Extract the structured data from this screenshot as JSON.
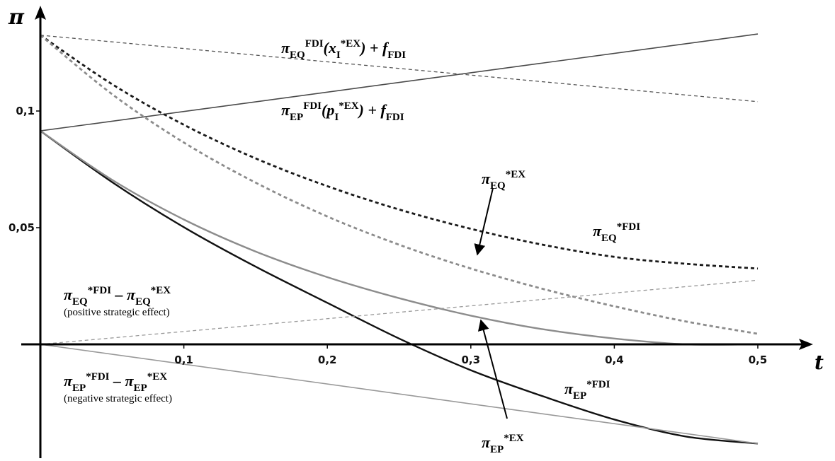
{
  "chart_data": {
    "type": "line",
    "xlabel": "t",
    "ylabel": "π",
    "xlim": [
      0,
      0.5
    ],
    "ylim": [
      -0.05,
      0.14
    ],
    "grid": false,
    "xticks": [
      {
        "value": 0.1,
        "label": "0,1"
      },
      {
        "value": 0.2,
        "label": "0,2"
      },
      {
        "value": 0.3,
        "label": "0,3"
      },
      {
        "value": 0.4,
        "label": "0,4"
      },
      {
        "value": 0.5,
        "label": "0,5"
      }
    ],
    "yticks": [
      {
        "value": 0.1,
        "label": "0,1"
      },
      {
        "value": 0.05,
        "label": "0,05"
      }
    ],
    "series": [
      {
        "id": "eq_fdi_x",
        "style": "dashed-thin",
        "color": "#555555",
        "x": [
          0,
          0.5
        ],
        "y": [
          0.1325,
          0.104
        ]
      },
      {
        "id": "ep_fdi_p",
        "style": "solid-thin",
        "color": "#4a4a4a",
        "x": [
          0,
          0.5
        ],
        "y": [
          0.0915,
          0.133
        ]
      },
      {
        "id": "eq_star_fdi",
        "style": "dashed-bold",
        "color": "#1a1a1a",
        "x": [
          0,
          0.05,
          0.1,
          0.15,
          0.2,
          0.25,
          0.3,
          0.35,
          0.4,
          0.45,
          0.5
        ],
        "y": [
          0.1325,
          0.1115,
          0.0941,
          0.0797,
          0.0678,
          0.0578,
          0.0495,
          0.0427,
          0.0375,
          0.0345,
          0.0325
        ]
      },
      {
        "id": "eq_star_ex",
        "style": "dashed-bold",
        "color": "#8c8c8c",
        "x": [
          0,
          0.05,
          0.1,
          0.15,
          0.2,
          0.25,
          0.3,
          0.35,
          0.4,
          0.45,
          0.5
        ],
        "y": [
          0.1325,
          0.1072,
          0.0865,
          0.0693,
          0.0548,
          0.0427,
          0.0325,
          0.0238,
          0.0163,
          0.0098,
          0.0045
        ]
      },
      {
        "id": "ep_star_fdi",
        "style": "solid-bold",
        "color": "#111111",
        "x": [
          0,
          0.05,
          0.1,
          0.15,
          0.2,
          0.25,
          0.3,
          0.35,
          0.4,
          0.45,
          0.5
        ],
        "y": [
          0.0915,
          0.0695,
          0.0502,
          0.0333,
          0.0178,
          0.0025,
          -0.0111,
          -0.0222,
          -0.0322,
          -0.0395,
          -0.0425
        ]
      },
      {
        "id": "ep_star_ex",
        "style": "solid-bold",
        "color": "#8c8c8c",
        "x": [
          0,
          0.05,
          0.1,
          0.15,
          0.2,
          0.25,
          0.3,
          0.35,
          0.4,
          0.45,
          0.5
        ],
        "y": [
          0.0915,
          0.0705,
          0.0535,
          0.0398,
          0.0288,
          0.0198,
          0.0123,
          0.0065,
          0.0025,
          0.0,
          0.0
        ]
      },
      {
        "id": "eq_diff",
        "style": "dashed-thin",
        "color": "#999999",
        "x": [
          0,
          0.5
        ],
        "y": [
          0,
          0.0275
        ]
      },
      {
        "id": "ep_diff",
        "style": "solid-thin",
        "color": "#999999",
        "x": [
          0,
          0.5
        ],
        "y": [
          0,
          -0.0425
        ]
      }
    ],
    "annotations": {
      "eq_fdi_x": {
        "pi": "π",
        "sub": "EQ",
        "sup": "FDI",
        "rest": "(",
        "var": "x",
        "varsub": "I",
        "varsup": "*EX",
        "tail": ") + ",
        "f": "f",
        "fsub": "FDI"
      },
      "ep_fdi_p": {
        "pi": "π",
        "sub": "EP",
        "sup": "FDI",
        "rest": "(",
        "var": "p",
        "varsub": "I",
        "varsup": "*EX",
        "tail": ") + ",
        "f": "f",
        "fsub": "FDI"
      },
      "eq_star_ex": {
        "pi": "π",
        "sub": "EQ",
        "sup": "*EX"
      },
      "eq_star_fdi": {
        "pi": "π",
        "sub": "EQ",
        "sup": "*FDI"
      },
      "eq_diff": {
        "pi1": "π",
        "sub1": "EQ",
        "sup1": "*FDI",
        "minus": " – ",
        "pi2": "π",
        "sub2": "EQ",
        "sup2": "*EX",
        "note": "(positive strategic effect)"
      },
      "ep_diff": {
        "pi1": "π",
        "sub1": "EP",
        "sup1": "*FDI",
        "minus": " – ",
        "pi2": "π",
        "sub2": "EP",
        "sup2": "*EX",
        "note": "(negative strategic effect)"
      },
      "ep_star_fdi": {
        "pi": "π",
        "sub": "EP",
        "sup": "*FDI"
      },
      "ep_star_ex": {
        "pi": "π",
        "sub": "EP",
        "sup": "*EX"
      }
    }
  }
}
